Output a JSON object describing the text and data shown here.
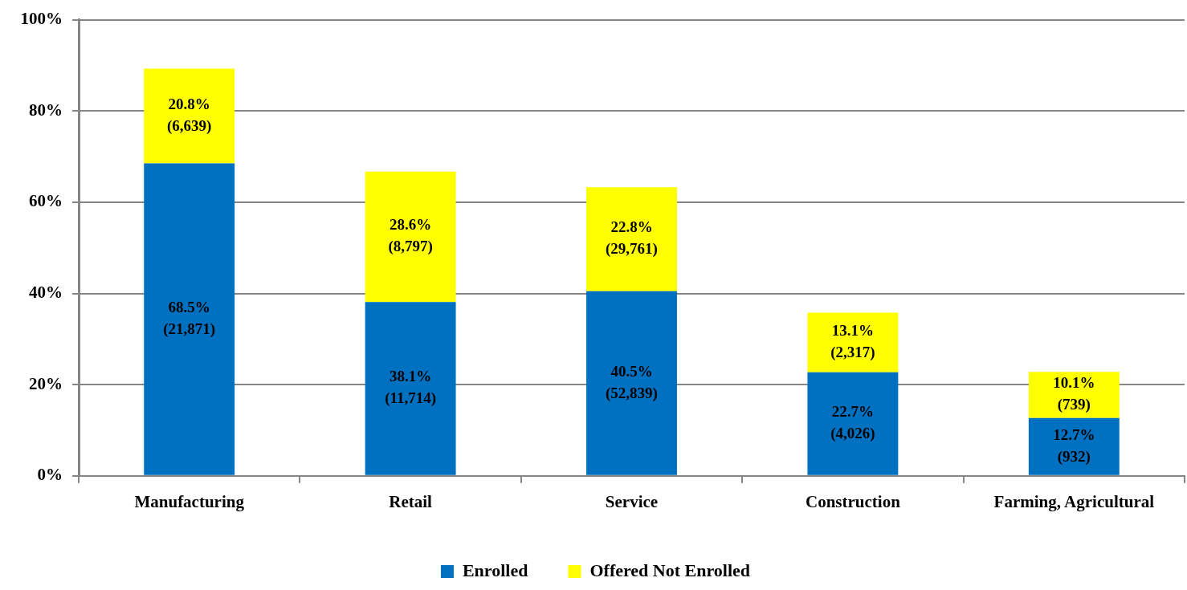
{
  "chart_data": {
    "type": "bar",
    "stacked": true,
    "categories": [
      "Manufacturing",
      "Retail",
      "Service",
      "Construction",
      "Farming, Agricultural"
    ],
    "series": [
      {
        "name": "Enrolled",
        "color": "#0070c0",
        "values": [
          68.5,
          38.1,
          40.5,
          22.7,
          12.7
        ],
        "value_labels": [
          "68.5%\n(21,871)",
          "38.1%\n(11,714)",
          "40.5%\n(52,839)",
          "22.7%\n(4,026)",
          "12.7%\n(932)"
        ]
      },
      {
        "name": "Offered Not Enrolled",
        "color": "#ffff00",
        "values": [
          20.8,
          28.6,
          22.8,
          13.1,
          10.1
        ],
        "value_labels": [
          "20.8%\n(6,639)",
          "28.6%\n(8,797)",
          "22.8%\n(29,761)",
          "13.1%\n(2,317)",
          "10.1%\n(739)"
        ]
      }
    ],
    "ylim": [
      0,
      100
    ],
    "yticks": [
      {
        "value": 0,
        "label": "0%"
      },
      {
        "value": 20,
        "label": "20%"
      },
      {
        "value": 40,
        "label": "40%"
      },
      {
        "value": 60,
        "label": "60%"
      },
      {
        "value": 80,
        "label": "80%"
      },
      {
        "value": 100,
        "label": "100%"
      }
    ],
    "grid": "y",
    "legend": "bottom"
  }
}
